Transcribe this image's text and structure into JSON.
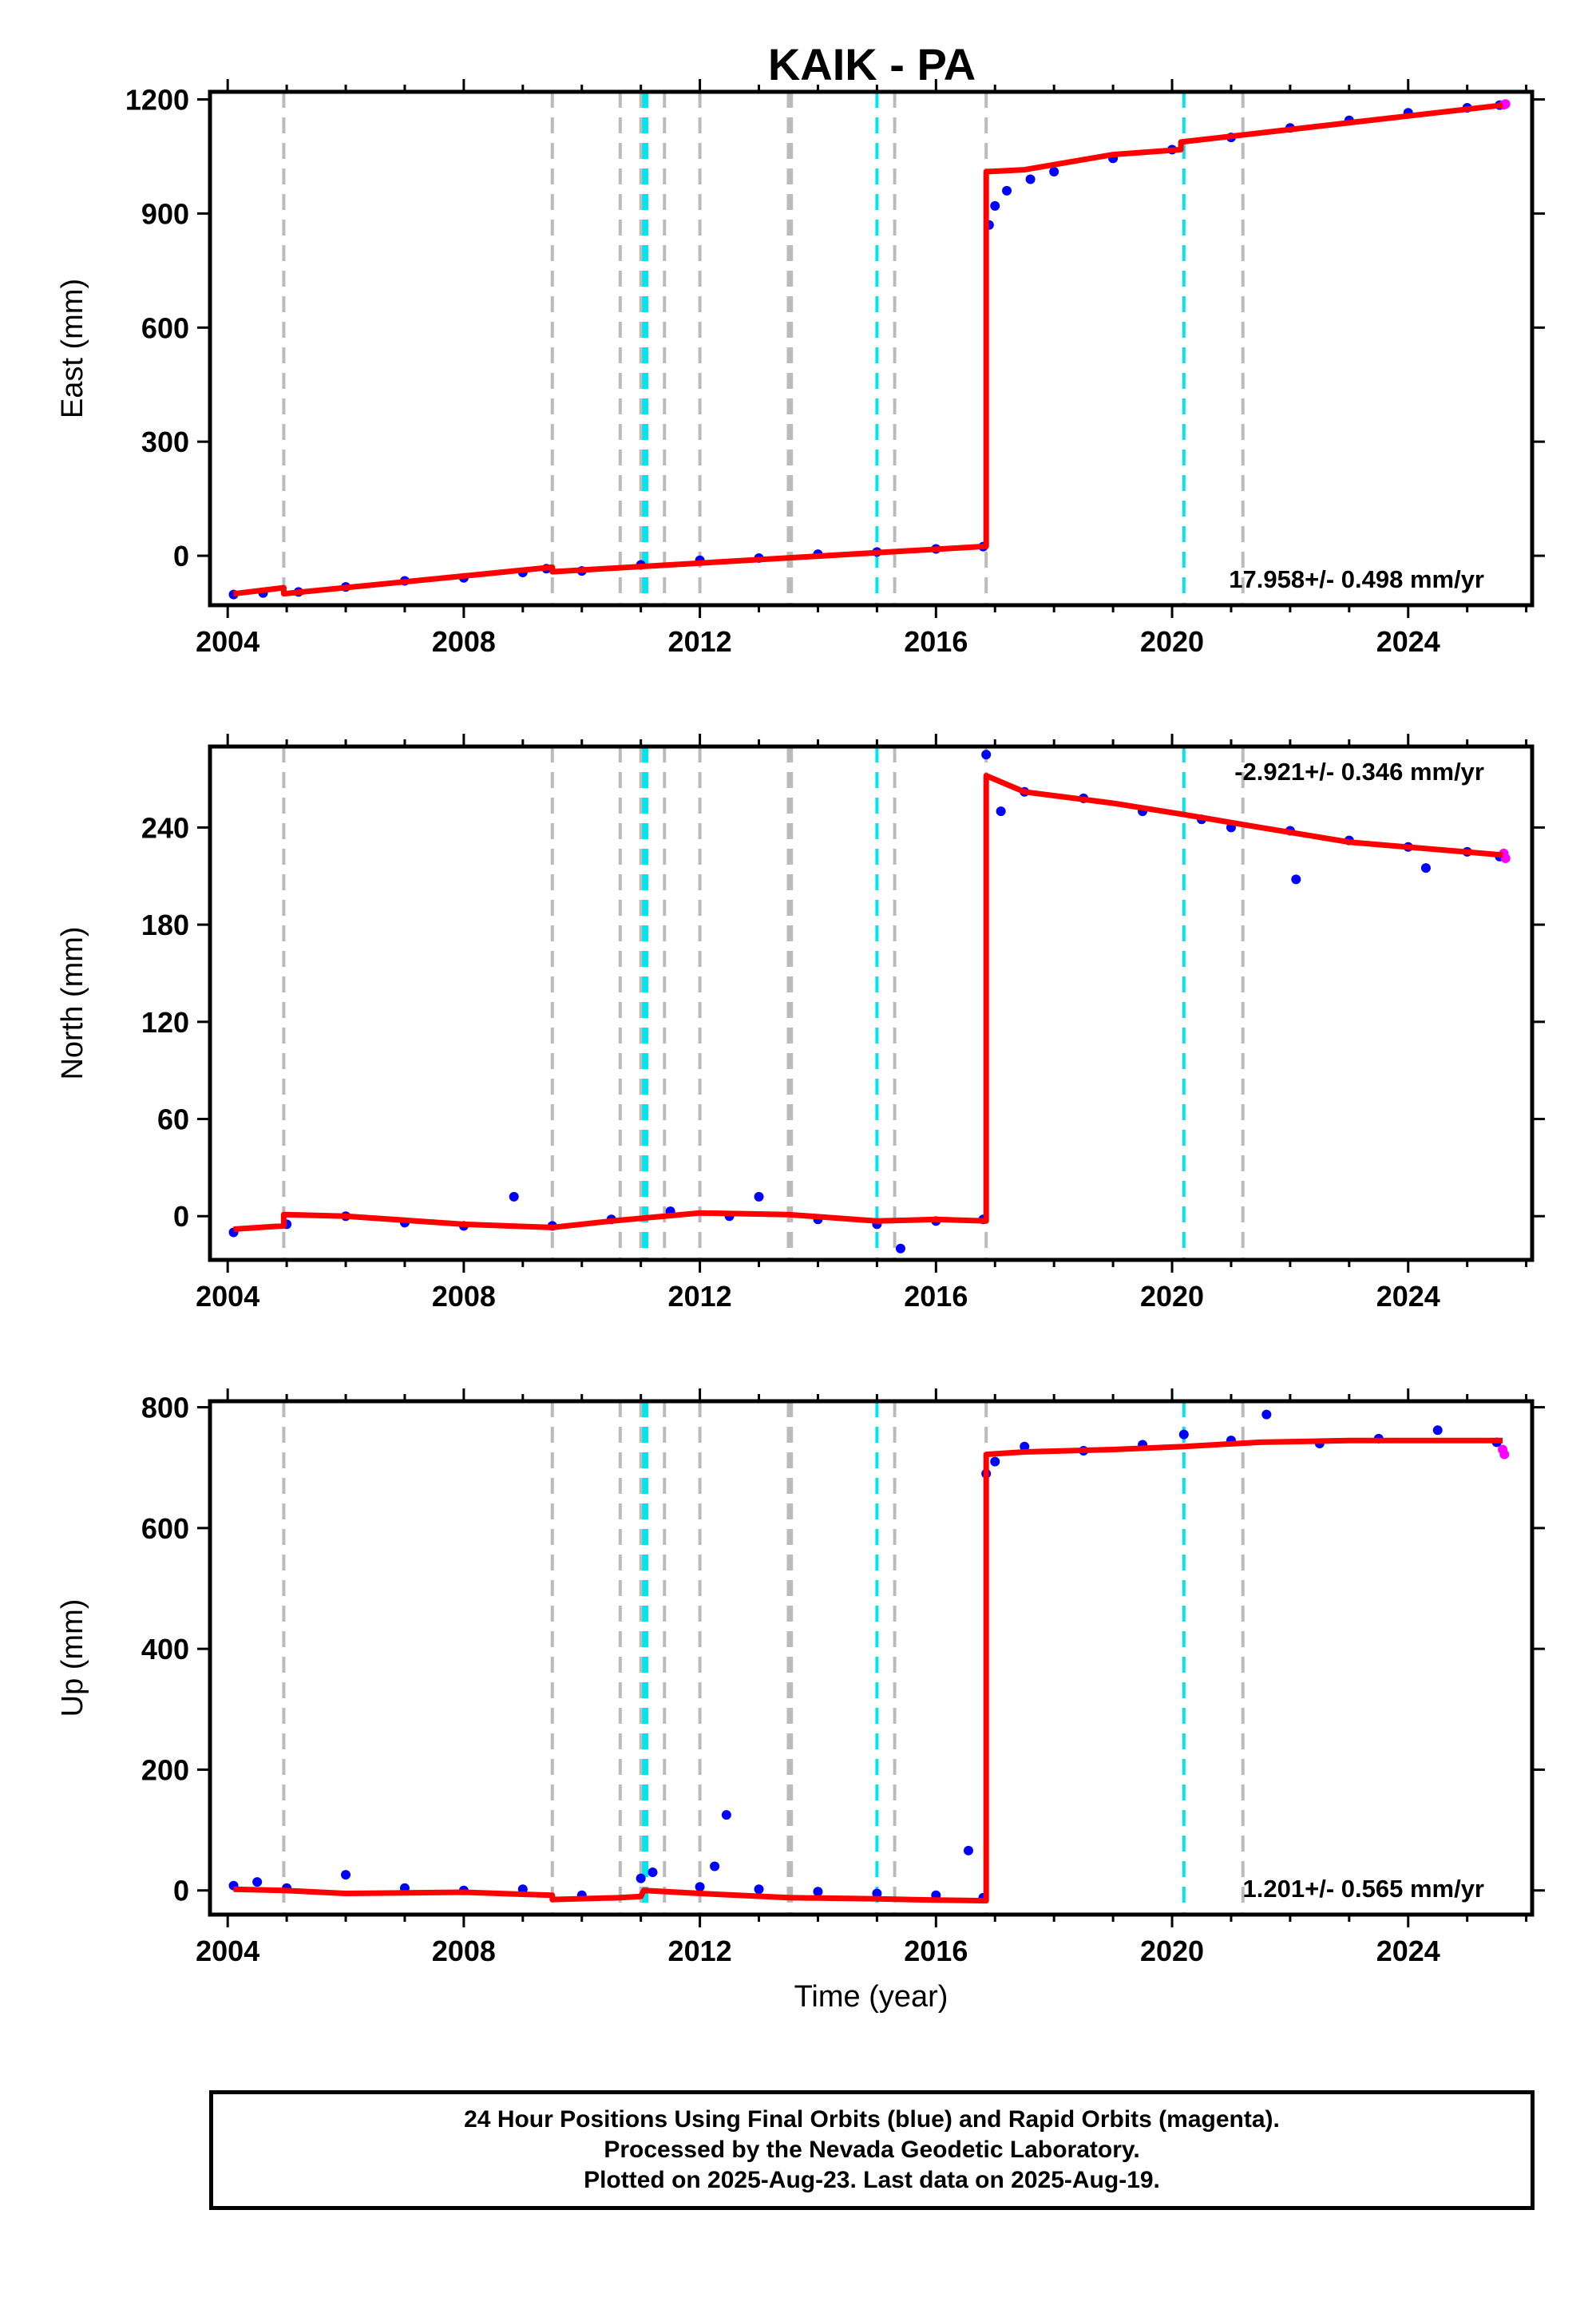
{
  "title": "KAIK - PA",
  "caption": [
    "24 Hour Positions Using Final Orbits (blue) and Rapid Orbits (magenta).",
    "Processed by the Nevada Geodetic Laboratory.",
    "Plotted on 2025-Aug-23. Last data on 2025-Aug-19."
  ],
  "colors": {
    "final_orbits": "#0000ff",
    "rapid_orbits": "#ff00ff",
    "model_fit": "#ff0000",
    "equipment_change_lines": "#bbbbbb",
    "earthquake_lines": "#00e5ee"
  },
  "chart_data": [
    {
      "type": "scatter",
      "ylabel": "East (mm)",
      "xlabel": "",
      "xlim": [
        2003.7,
        2026.1
      ],
      "ylim": [
        -130,
        1220
      ],
      "xticks": [
        2004,
        2008,
        2012,
        2016,
        2020,
        2024
      ],
      "yticks": [
        0,
        300,
        600,
        900,
        1200
      ],
      "rate_annotation": "17.958+/- 0.498 mm/yr",
      "rate_position": "bottom-right",
      "model_fit": {
        "x": [
          2004.1,
          2004.95,
          2004.95,
          2009.5,
          2009.5,
          2016.85,
          2016.85,
          2017.5,
          2019.0,
          2020.15,
          2020.15,
          2025.6
        ],
        "y": [
          -100,
          -84,
          -100,
          -30,
          -42,
          25,
          1010,
          1015,
          1055,
          1068,
          1088,
          1185
        ]
      },
      "series": [
        {
          "name": "Final Orbits",
          "color": "#0000ff",
          "points": [
            [
              2004.1,
              -102
            ],
            [
              2004.6,
              -98
            ],
            [
              2005.2,
              -95
            ],
            [
              2006.0,
              -82
            ],
            [
              2007.0,
              -66
            ],
            [
              2008.0,
              -58
            ],
            [
              2009.0,
              -44
            ],
            [
              2009.4,
              -34
            ],
            [
              2010.0,
              -40
            ],
            [
              2011.0,
              -24
            ],
            [
              2012.0,
              -12
            ],
            [
              2013.0,
              -6
            ],
            [
              2014.0,
              4
            ],
            [
              2015.0,
              10
            ],
            [
              2016.0,
              18
            ],
            [
              2016.8,
              24
            ],
            [
              2016.9,
              870
            ],
            [
              2017.0,
              920
            ],
            [
              2017.2,
              960
            ],
            [
              2017.6,
              990
            ],
            [
              2018.0,
              1010
            ],
            [
              2019.0,
              1045
            ],
            [
              2020.0,
              1068
            ],
            [
              2021.0,
              1100
            ],
            [
              2022.0,
              1125
            ],
            [
              2023.0,
              1145
            ],
            [
              2024.0,
              1165
            ],
            [
              2025.0,
              1178
            ],
            [
              2025.55,
              1185
            ]
          ]
        },
        {
          "name": "Rapid Orbits",
          "color": "#ff00ff",
          "points": [
            [
              2025.62,
              1186
            ],
            [
              2025.65,
              1188
            ]
          ]
        }
      ],
      "equipment_change_epochs": [
        2004.95,
        2009.5,
        2010.65,
        2011.0,
        2011.4,
        2012.0,
        2013.5,
        2013.55,
        2015.3,
        2016.85,
        2021.2
      ],
      "earthquake_epochs": [
        2011.05,
        2011.1,
        2015.0,
        2020.2
      ]
    },
    {
      "type": "scatter",
      "ylabel": "North (mm)",
      "xlabel": "",
      "xlim": [
        2003.7,
        2026.1
      ],
      "ylim": [
        -27,
        290
      ],
      "xticks": [
        2004,
        2008,
        2012,
        2016,
        2020,
        2024
      ],
      "yticks": [
        0,
        60,
        120,
        180,
        240
      ],
      "rate_annotation": "-2.921+/- 0.346 mm/yr",
      "rate_position": "top-right",
      "model_fit": {
        "x": [
          2004.1,
          2004.95,
          2004.95,
          2006.0,
          2008.0,
          2009.5,
          2010.5,
          2012.0,
          2013.5,
          2015.0,
          2016.0,
          2016.85,
          2016.85,
          2017.5,
          2019.0,
          2020.2,
          2021.5,
          2023.0,
          2025.6
        ],
        "y": [
          -8,
          -6,
          1,
          0,
          -5,
          -7,
          -3,
          2,
          1,
          -3,
          -2,
          -3,
          272,
          262,
          255,
          248,
          240,
          231,
          223
        ]
      },
      "series": [
        {
          "name": "Final Orbits",
          "color": "#0000ff",
          "points": [
            [
              2004.1,
              -10
            ],
            [
              2005.0,
              -5
            ],
            [
              2006.0,
              0
            ],
            [
              2007.0,
              -4
            ],
            [
              2008.0,
              -6
            ],
            [
              2008.85,
              12
            ],
            [
              2009.5,
              -6
            ],
            [
              2010.5,
              -2
            ],
            [
              2011.5,
              3
            ],
            [
              2012.5,
              0
            ],
            [
              2013.0,
              12
            ],
            [
              2014.0,
              -2
            ],
            [
              2015.0,
              -5
            ],
            [
              2015.4,
              -20
            ],
            [
              2016.0,
              -3
            ],
            [
              2016.8,
              -2
            ],
            [
              2016.85,
              285
            ],
            [
              2017.1,
              250
            ],
            [
              2017.5,
              262
            ],
            [
              2018.5,
              258
            ],
            [
              2019.5,
              250
            ],
            [
              2020.5,
              245
            ],
            [
              2021.0,
              240
            ],
            [
              2022.0,
              238
            ],
            [
              2022.1,
              208
            ],
            [
              2023.0,
              232
            ],
            [
              2024.0,
              228
            ],
            [
              2024.3,
              215
            ],
            [
              2025.0,
              225
            ],
            [
              2025.55,
              222
            ]
          ]
        },
        {
          "name": "Rapid Orbits",
          "color": "#ff00ff",
          "points": [
            [
              2025.62,
              224
            ],
            [
              2025.65,
              221
            ]
          ]
        }
      ],
      "equipment_change_epochs": [
        2004.95,
        2009.5,
        2010.65,
        2011.0,
        2011.4,
        2012.0,
        2013.5,
        2013.55,
        2015.3,
        2016.85,
        2021.2
      ],
      "earthquake_epochs": [
        2011.05,
        2011.1,
        2015.0,
        2020.2
      ]
    },
    {
      "type": "scatter",
      "ylabel": "Up (mm)",
      "xlabel": "Time (year)",
      "xlim": [
        2003.7,
        2026.1
      ],
      "ylim": [
        -40,
        810
      ],
      "xticks": [
        2004,
        2008,
        2012,
        2016,
        2020,
        2024
      ],
      "yticks": [
        0,
        200,
        400,
        600,
        800
      ],
      "rate_annotation": "1.201+/- 0.565 mm/yr",
      "rate_position": "bottom-right",
      "model_fit": {
        "x": [
          2004.1,
          2004.95,
          2006.0,
          2008.0,
          2009.5,
          2009.5,
          2010.65,
          2011.0,
          2011.05,
          2012.0,
          2013.5,
          2015.0,
          2016.0,
          2016.85,
          2016.85,
          2017.5,
          2019.0,
          2020.2,
          2021.5,
          2023.0,
          2025.6
        ],
        "y": [
          2,
          0,
          -5,
          -3,
          -8,
          -15,
          -12,
          -10,
          0,
          -5,
          -12,
          -14,
          -16,
          -17,
          722,
          726,
          730,
          735,
          742,
          745,
          745
        ]
      },
      "series": [
        {
          "name": "Final Orbits",
          "color": "#0000ff",
          "points": [
            [
              2004.1,
              8
            ],
            [
              2004.5,
              14
            ],
            [
              2005.0,
              4
            ],
            [
              2006.0,
              26
            ],
            [
              2007.0,
              4
            ],
            [
              2008.0,
              0
            ],
            [
              2009.0,
              2
            ],
            [
              2010.0,
              -8
            ],
            [
              2011.0,
              20
            ],
            [
              2011.2,
              30
            ],
            [
              2012.0,
              6
            ],
            [
              2012.25,
              40
            ],
            [
              2012.45,
              125
            ],
            [
              2013.0,
              2
            ],
            [
              2014.0,
              -2
            ],
            [
              2015.0,
              -5
            ],
            [
              2016.0,
              -8
            ],
            [
              2016.55,
              66
            ],
            [
              2016.8,
              -12
            ],
            [
              2016.85,
              690
            ],
            [
              2017.0,
              710
            ],
            [
              2017.5,
              735
            ],
            [
              2018.5,
              728
            ],
            [
              2019.5,
              738
            ],
            [
              2020.2,
              755
            ],
            [
              2021.0,
              745
            ],
            [
              2021.6,
              788
            ],
            [
              2022.5,
              740
            ],
            [
              2023.5,
              748
            ],
            [
              2024.5,
              762
            ],
            [
              2025.5,
              742
            ]
          ]
        },
        {
          "name": "Rapid Orbits",
          "color": "#ff00ff",
          "points": [
            [
              2025.6,
              730
            ],
            [
              2025.63,
              722
            ]
          ]
        }
      ],
      "equipment_change_epochs": [
        2004.95,
        2009.5,
        2010.65,
        2011.0,
        2011.4,
        2012.0,
        2013.5,
        2013.55,
        2015.3,
        2016.85,
        2021.2
      ],
      "earthquake_epochs": [
        2011.05,
        2011.1,
        2015.0,
        2020.2
      ]
    }
  ]
}
